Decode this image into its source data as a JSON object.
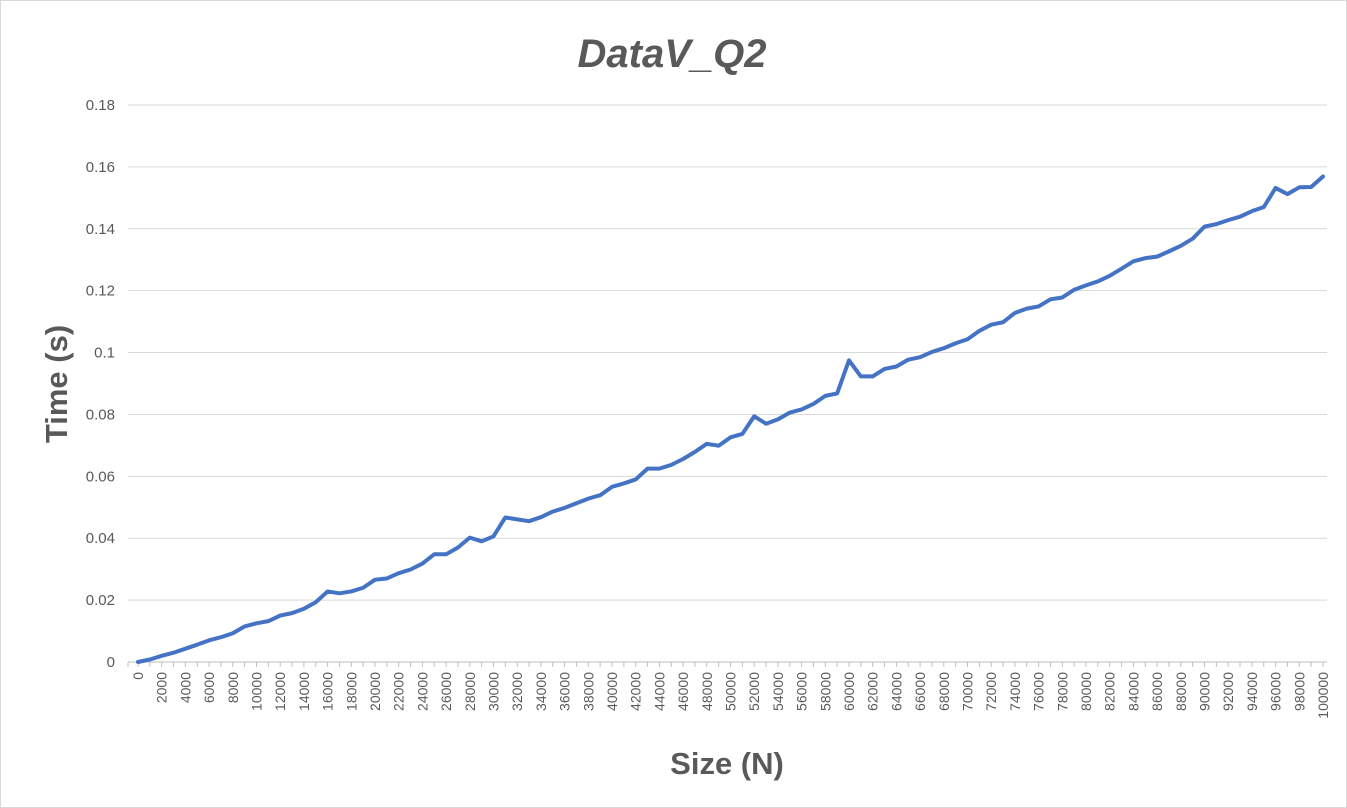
{
  "chart_data": {
    "type": "line",
    "title": "DataV_Q2",
    "xlabel": "Size (N)",
    "ylabel": "Time (s)",
    "ylim": [
      0,
      0.18
    ],
    "yticks": [
      "0",
      "0.02",
      "0.04",
      "0.06",
      "0.08",
      "0.1",
      "0.12",
      "0.14",
      "0.16",
      "0.18"
    ],
    "x": [
      0,
      1000,
      2000,
      3000,
      4000,
      5000,
      6000,
      7000,
      8000,
      9000,
      10000,
      11000,
      12000,
      13000,
      14000,
      15000,
      16000,
      17000,
      18000,
      19000,
      20000,
      21000,
      22000,
      23000,
      24000,
      25000,
      26000,
      27000,
      28000,
      29000,
      30000,
      31000,
      32000,
      33000,
      34000,
      35000,
      36000,
      37000,
      38000,
      39000,
      40000,
      41000,
      42000,
      43000,
      44000,
      45000,
      46000,
      47000,
      48000,
      49000,
      50000,
      51000,
      52000,
      53000,
      54000,
      55000,
      56000,
      57000,
      58000,
      59000,
      60000,
      61000,
      62000,
      63000,
      64000,
      65000,
      66000,
      67000,
      68000,
      69000,
      70000,
      71000,
      72000,
      73000,
      74000,
      75000,
      76000,
      77000,
      78000,
      79000,
      80000,
      81000,
      82000,
      83000,
      84000,
      85000,
      86000,
      87000,
      88000,
      89000,
      90000,
      91000,
      92000,
      93000,
      94000,
      95000,
      96000,
      97000,
      98000,
      99000,
      100000
    ],
    "xtick_labels": [
      "0",
      "2000",
      "4000",
      "6000",
      "8000",
      "10000",
      "12000",
      "14000",
      "16000",
      "18000",
      "20000",
      "22000",
      "24000",
      "26000",
      "28000",
      "30000",
      "32000",
      "34000",
      "36000",
      "38000",
      "40000",
      "42000",
      "44000",
      "46000",
      "48000",
      "50000",
      "52000",
      "54000",
      "56000",
      "58000",
      "60000",
      "62000",
      "64000",
      "66000",
      "68000",
      "70000",
      "72000",
      "74000",
      "76000",
      "78000",
      "80000",
      "82000",
      "84000",
      "86000",
      "88000",
      "90000",
      "92000",
      "94000",
      "96000",
      "98000",
      "100000"
    ],
    "grid": true,
    "legend": "none",
    "series": [
      {
        "color": "#4472c4",
        "values": [
          0,
          0.0008,
          0.002,
          0.003,
          0.0043,
          0.0056,
          0.007,
          0.008,
          0.0093,
          0.0115,
          0.0125,
          0.0132,
          0.015,
          0.0158,
          0.0172,
          0.0193,
          0.0228,
          0.0222,
          0.0228,
          0.024,
          0.0266,
          0.027,
          0.0287,
          0.0299,
          0.0318,
          0.0348,
          0.0348,
          0.037,
          0.0402,
          0.039,
          0.0406,
          0.0467,
          0.0461,
          0.0455,
          0.0468,
          0.0486,
          0.0498,
          0.0513,
          0.0528,
          0.0539,
          0.0566,
          0.0577,
          0.059,
          0.0625,
          0.0625,
          0.0637,
          0.0656,
          0.0679,
          0.0705,
          0.0699,
          0.0726,
          0.0737,
          0.0794,
          0.077,
          0.0784,
          0.0806,
          0.0816,
          0.0834,
          0.086,
          0.0868,
          0.0975,
          0.0923,
          0.0923,
          0.0947,
          0.0955,
          0.0977,
          0.0985,
          0.1002,
          0.1014,
          0.103,
          0.1043,
          0.107,
          0.109,
          0.1098,
          0.1128,
          0.1142,
          0.1149,
          0.1172,
          0.1178,
          0.1203,
          0.1217,
          0.123,
          0.1248,
          0.1271,
          0.1295,
          0.1305,
          0.131,
          0.1327,
          0.1345,
          0.1368,
          0.1407,
          0.1415,
          0.1428,
          0.1439,
          0.1457,
          0.147,
          0.1532,
          0.1512,
          0.1534,
          0.1535,
          0.1569
        ]
      }
    ]
  }
}
